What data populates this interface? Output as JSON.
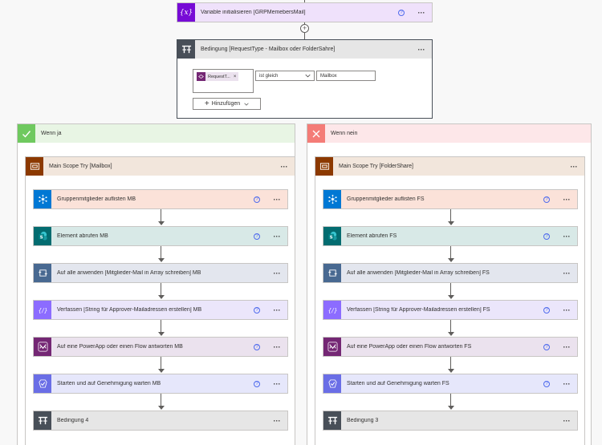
{
  "variable_step": {
    "label": "Variable initialisieren [GRPMemebersMail]",
    "color": "#770bd6"
  },
  "condition": {
    "title": "Bedingung [RequestType - Mailbox oder FolderSahre]",
    "token_label": "RequestT...",
    "operator": "ist gleich",
    "value": "Mailbox",
    "add_label": "Hinzufügen"
  },
  "branch_yes": {
    "label": "Wenn ja",
    "scope": "Main Scope Try [Mailbox]",
    "steps": [
      {
        "label": "Gruppenmitglieder auflisten MB",
        "icon": "azure-ad-icon",
        "help": true
      },
      {
        "label": "Element abrufen MB",
        "icon": "sharepoint-icon",
        "help": true
      },
      {
        "label": "Auf alle anwenden [Mitglieder-Mail in Array schreiben] MB",
        "icon": "apply-to-each-icon",
        "help": false
      },
      {
        "label": "Verfassen [String für Approver-Mailadressen erstellen] MB",
        "icon": "compose-icon",
        "help": true
      },
      {
        "label": "Auf eine PowerApp oder einen Flow antworten MB",
        "icon": "powerapps-icon",
        "help": true
      },
      {
        "label": "Starten und auf Genehmigung warten MB",
        "icon": "approval-icon",
        "help": true
      },
      {
        "label": "Bedingung 4",
        "icon": "condition-icon",
        "help": false
      }
    ]
  },
  "branch_no": {
    "label": "Wenn nein",
    "scope": "Main Scope Try [FolderShare]",
    "steps": [
      {
        "label": "Gruppenmitglieder auflisten FS",
        "icon": "azure-ad-icon",
        "help": true
      },
      {
        "label": "Element abrufen FS",
        "icon": "sharepoint-icon",
        "help": true
      },
      {
        "label": "Auf alle anwenden [Mitglieder-Mail in Array schreiben] FS",
        "icon": "apply-to-each-icon",
        "help": false
      },
      {
        "label": "Verfassen [String für Approver-Mailadressen erstellen] FS",
        "icon": "compose-icon",
        "help": true
      },
      {
        "label": "Auf eine PowerApp oder einen Flow antworten FS",
        "icon": "powerapps-icon",
        "help": true
      },
      {
        "label": "Starten und auf Genehmigung warten FS",
        "icon": "approval-icon",
        "help": true
      },
      {
        "label": "Bedingung 3",
        "icon": "condition-icon",
        "help": false
      }
    ]
  },
  "colors": {
    "azure-ad-icon": {
      "icon": "#0078d4",
      "bg": "#fbe2d9"
    },
    "sharepoint-icon": {
      "icon": "#036c70",
      "bg": "#d8e9e7"
    },
    "apply-to-each-icon": {
      "icon": "#486991",
      "bg": "#e3e6ee"
    },
    "compose-icon": {
      "icon": "#8c6cff",
      "bg": "#ebe6fb"
    },
    "powerapps-icon": {
      "icon": "#742774",
      "bg": "#ebe2ee"
    },
    "approval-icon": {
      "icon": "#6a6ee6",
      "bg": "#e6e7fb"
    },
    "condition-icon": {
      "icon": "#484f58",
      "bg": "#e6e6e6"
    },
    "scope-icon": {
      "icon": "#8c3900",
      "bg": "#f2e6dc"
    }
  }
}
